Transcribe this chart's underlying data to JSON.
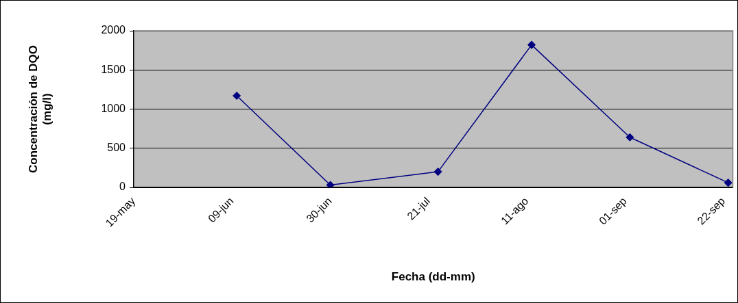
{
  "chart_data": {
    "type": "line",
    "xlabel": "Fecha (dd-mm)",
    "ylabel": "Concentración de DQO (mg/l)",
    "x": [
      "--06-10",
      "--06-30",
      "--07-23",
      "--08-12",
      "--09-02",
      "--09-23"
    ],
    "series": [
      {
        "color": "#000080",
        "values": [
          1170,
          30,
          200,
          1820,
          640,
          60
        ]
      }
    ],
    "xlim": [
      "--05-19",
      "--09-24"
    ],
    "xticks": [
      {
        "value": "--05-19",
        "label": "19-may"
      },
      {
        "value": "--06-09",
        "label": "09-jun"
      },
      {
        "value": "--06-30",
        "label": "30-jun"
      },
      {
        "value": "--07-21",
        "label": "21-jul"
      },
      {
        "value": "--08-11",
        "label": "11-ago"
      },
      {
        "value": "--09-01",
        "label": "01-sep"
      },
      {
        "value": "--09-22",
        "label": "22-sep"
      }
    ],
    "ylim": [
      0,
      2000
    ],
    "yticks": [
      0,
      500,
      1000,
      1500,
      2000
    ],
    "grid": "y",
    "marker": "diamond",
    "line_style": "solid",
    "legend": false
  }
}
